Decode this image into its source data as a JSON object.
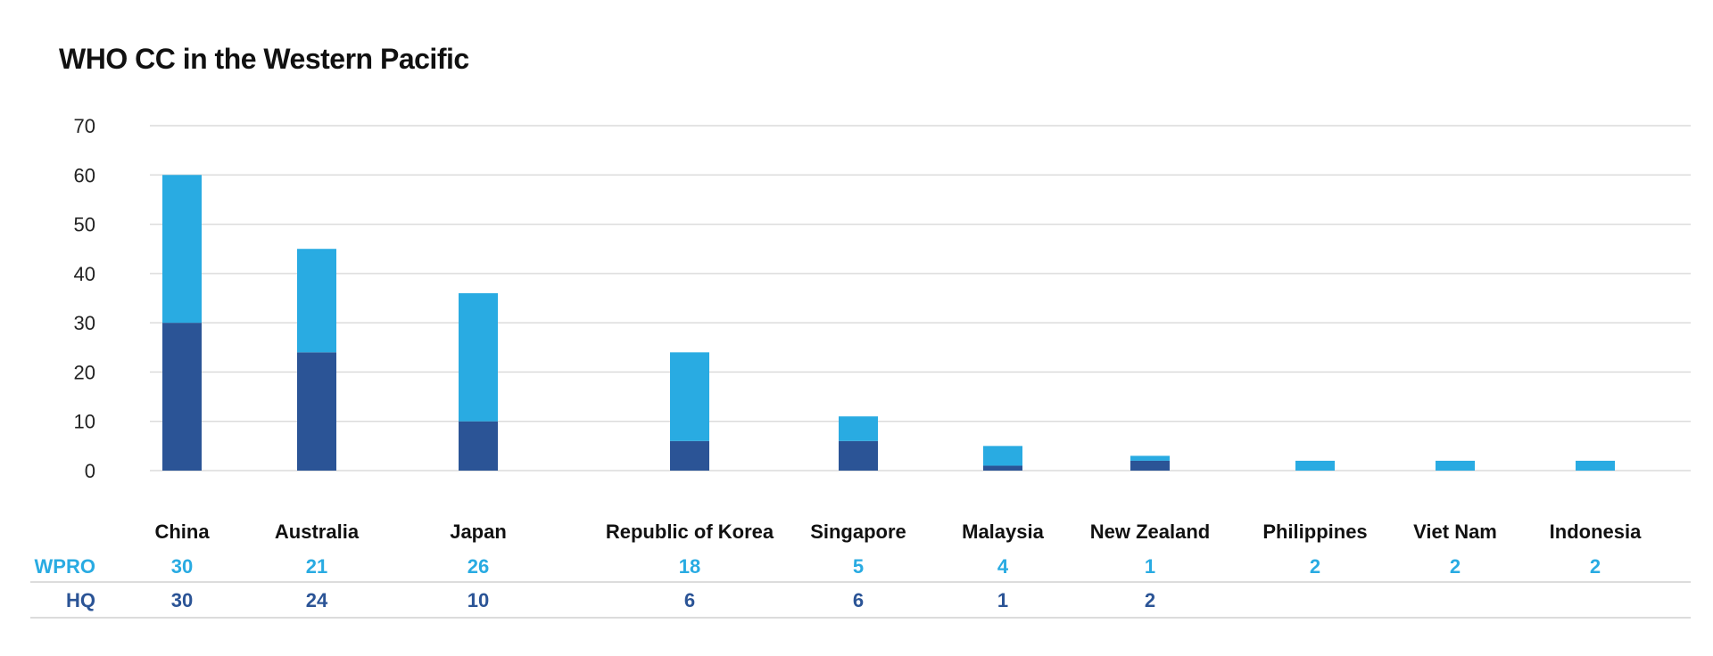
{
  "chart_data": {
    "type": "bar",
    "stacked": true,
    "title": "WHO CC in the Western Pacific",
    "categories": [
      "China",
      "Australia",
      "Japan",
      "Republic of Korea",
      "Singapore",
      "Malaysia",
      "New Zealand",
      "Philippines",
      "Viet Nam",
      "Indonesia"
    ],
    "series": [
      {
        "name": "HQ",
        "color": "#2B5496",
        "values": [
          30,
          24,
          10,
          6,
          6,
          1,
          2,
          null,
          null,
          null
        ]
      },
      {
        "name": "WPRO",
        "color": "#29ABE2",
        "values": [
          30,
          21,
          26,
          18,
          5,
          4,
          1,
          2,
          2,
          2
        ]
      }
    ],
    "ylim": [
      0,
      70
    ],
    "yticks": [
      0,
      10,
      20,
      30,
      40,
      50,
      60,
      70
    ],
    "grid": true,
    "legend": "data table below chart"
  }
}
